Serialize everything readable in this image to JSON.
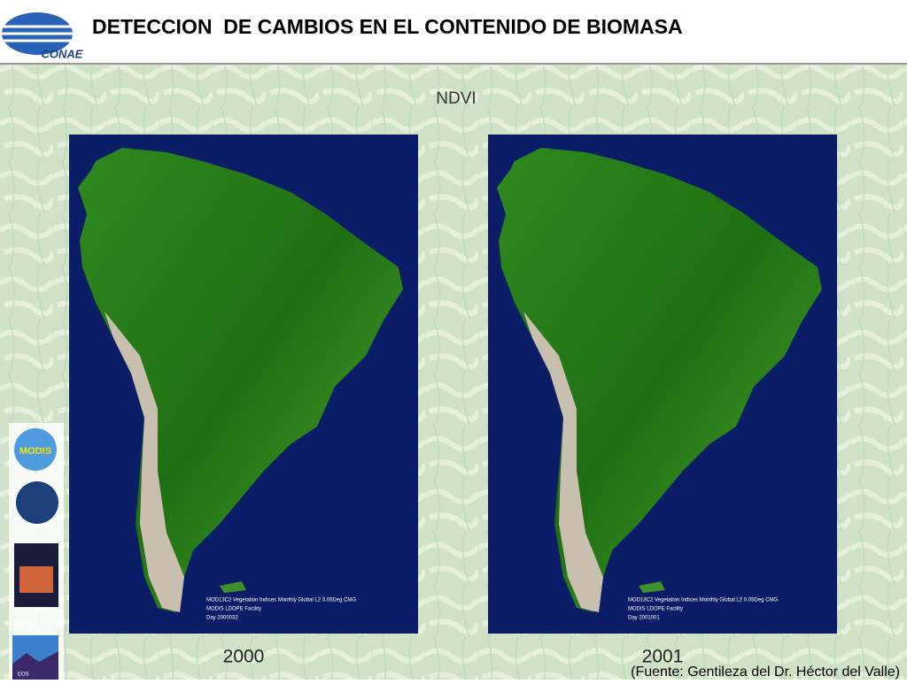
{
  "header": {
    "logo_text": "CONAE",
    "title": "DETECCION  DE CAMBIOS EN EL CONTENIDO DE BIOMASA"
  },
  "slide": {
    "heading": "NDVI",
    "maps": [
      {
        "caption_lines": [
          "MOD13C2 Vegetation Indices Monthly Global L2 0.05Deg CMG",
          "MODIS LDOPE Facility",
          "Day 2000032"
        ],
        "year": "2000"
      },
      {
        "caption_lines": [
          "MOD13C2 Vegetation Indices Monthly Global L2 0.05Deg CMG",
          "MODIS LDOPE Facility",
          "Day 2001001"
        ],
        "year": "2001"
      }
    ],
    "logos": [
      "MODIS",
      "EOS"
    ],
    "source": "(Fuente: Gentileza del Dr. Héctor del Valle)"
  }
}
